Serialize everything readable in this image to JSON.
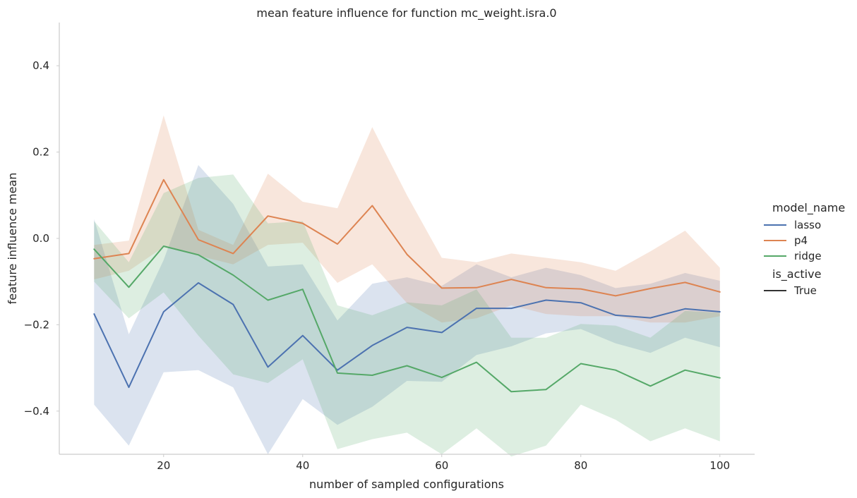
{
  "chart_data": {
    "type": "line",
    "title": "mean feature influence for function mc_weight.isra.0",
    "xlabel": "number of sampled configurations",
    "ylabel": "feature influence mean",
    "xlim": [
      5,
      105
    ],
    "ylim": [
      -0.5,
      0.5
    ],
    "xticks": [
      20,
      40,
      60,
      80,
      100
    ],
    "yticks": [
      -0.4,
      -0.2,
      0.0,
      0.2,
      0.4
    ],
    "ytick_labels": [
      "−0.4",
      "−0.2",
      "0.0",
      "0.2",
      "0.4"
    ],
    "grid": false,
    "legend_position": "right",
    "legend": {
      "hue_title": "model_name",
      "style_title": "is_active",
      "style_items": [
        {
          "label": "True",
          "color": "#333333"
        }
      ]
    },
    "x": [
      10,
      15,
      20,
      25,
      30,
      35,
      40,
      45,
      50,
      55,
      60,
      65,
      70,
      75,
      80,
      85,
      90,
      95,
      100
    ],
    "series": [
      {
        "name": "lasso",
        "color": "#4c72b0",
        "values": [
          -0.175,
          -0.345,
          -0.17,
          -0.103,
          -0.153,
          -0.298,
          -0.225,
          -0.305,
          -0.248,
          -0.206,
          -0.218,
          -0.162,
          -0.162,
          -0.143,
          -0.149,
          -0.178,
          -0.184,
          -0.163,
          -0.17
        ],
        "ci_low": [
          -0.385,
          -0.48,
          -0.31,
          -0.305,
          -0.345,
          -0.5,
          -0.372,
          -0.432,
          -0.39,
          -0.33,
          -0.332,
          -0.27,
          -0.25,
          -0.22,
          -0.21,
          -0.243,
          -0.265,
          -0.23,
          -0.252
        ],
        "ci_high": [
          0.045,
          -0.222,
          -0.05,
          0.17,
          0.08,
          -0.065,
          -0.06,
          -0.19,
          -0.105,
          -0.09,
          -0.11,
          -0.06,
          -0.09,
          -0.068,
          -0.085,
          -0.115,
          -0.105,
          -0.08,
          -0.098
        ]
      },
      {
        "name": "p4",
        "color": "#dd8452",
        "values": [
          -0.047,
          -0.035,
          0.136,
          -0.003,
          -0.035,
          0.052,
          0.035,
          -0.013,
          0.076,
          -0.037,
          -0.115,
          -0.114,
          -0.095,
          -0.114,
          -0.117,
          -0.133,
          -0.116,
          -0.102,
          -0.124
        ],
        "ci_low": [
          -0.095,
          -0.075,
          -0.02,
          -0.04,
          -0.06,
          -0.015,
          -0.01,
          -0.103,
          -0.06,
          -0.15,
          -0.195,
          -0.185,
          -0.155,
          -0.175,
          -0.18,
          -0.18,
          -0.195,
          -0.195,
          -0.18
        ],
        "ci_high": [
          -0.015,
          -0.005,
          0.285,
          0.02,
          -0.015,
          0.15,
          0.085,
          0.07,
          0.258,
          0.1,
          -0.045,
          -0.055,
          -0.035,
          -0.045,
          -0.055,
          -0.075,
          -0.03,
          0.018,
          -0.068
        ]
      },
      {
        "name": "ridge",
        "color": "#55a868",
        "values": [
          -0.025,
          -0.113,
          -0.018,
          -0.038,
          -0.085,
          -0.143,
          -0.118,
          -0.312,
          -0.317,
          -0.295,
          -0.322,
          -0.287,
          -0.355,
          -0.35,
          -0.29,
          -0.305,
          -0.342,
          -0.305,
          -0.323
        ],
        "ci_low": [
          -0.1,
          -0.185,
          -0.125,
          -0.225,
          -0.315,
          -0.335,
          -0.28,
          -0.488,
          -0.465,
          -0.45,
          -0.5,
          -0.44,
          -0.505,
          -0.48,
          -0.385,
          -0.42,
          -0.47,
          -0.44,
          -0.47
        ],
        "ci_high": [
          0.04,
          -0.055,
          0.105,
          0.14,
          0.148,
          0.035,
          0.04,
          -0.155,
          -0.178,
          -0.148,
          -0.155,
          -0.118,
          -0.23,
          -0.23,
          -0.198,
          -0.202,
          -0.23,
          -0.168,
          -0.172
        ]
      }
    ]
  }
}
